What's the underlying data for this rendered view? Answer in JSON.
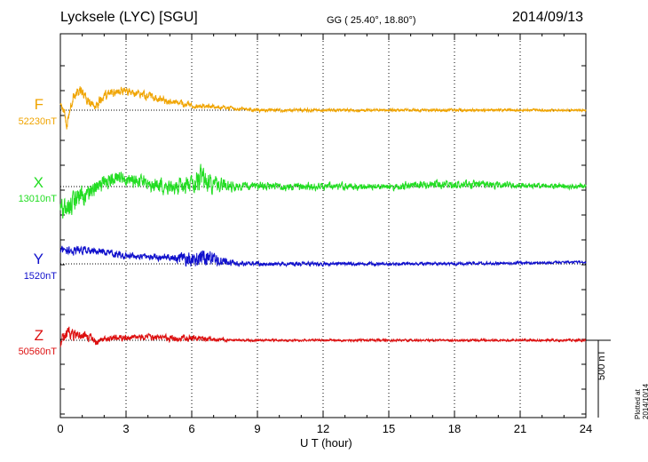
{
  "header": {
    "station": "Lycksele (LYC)  [SGU]",
    "coords": "GG ( 25.40°,  18.80°)",
    "date": "2014/09/13"
  },
  "chart_data": {
    "type": "line",
    "title": "Lycksele (LYC)  [SGU]",
    "xlabel": "U T (hour)",
    "ylabel": "",
    "xlim": [
      0,
      24
    ],
    "xticks": [
      "0",
      "3",
      "6",
      "9",
      "12",
      "15",
      "18",
      "21",
      "24"
    ],
    "grid": "vertical dotted at 3-hour intervals",
    "scale_bar_nT": 500,
    "scale_label": "500 nT",
    "series": [
      {
        "name": "F",
        "baseline": "52230nT",
        "color": "#f0a400",
        "profile": [
          [
            0,
            -10
          ],
          [
            0.3,
            15
          ],
          [
            0.6,
            -15
          ],
          [
            0.9,
            -25
          ],
          [
            1.2,
            -12
          ],
          [
            1.6,
            -5
          ],
          [
            2.0,
            -15
          ],
          [
            2.5,
            -20
          ],
          [
            3.0,
            -22
          ],
          [
            3.5,
            -18
          ],
          [
            4.0,
            -15
          ],
          [
            5.0,
            -10
          ],
          [
            6.0,
            -6
          ],
          [
            7.0,
            -4
          ],
          [
            8.0,
            -2
          ],
          [
            9.0,
            0
          ],
          [
            12.0,
            0
          ],
          [
            24.0,
            0
          ]
        ],
        "noise": [
          [
            0,
            5
          ],
          [
            3,
            4
          ],
          [
            6,
            3
          ],
          [
            8,
            1.5
          ],
          [
            24,
            1
          ]
        ]
      },
      {
        "name": "X",
        "baseline": "13010nT",
        "color": "#22dd22",
        "profile": [
          [
            0,
            30
          ],
          [
            0.5,
            20
          ],
          [
            1.0,
            10
          ],
          [
            1.5,
            5
          ],
          [
            2.0,
            -5
          ],
          [
            2.5,
            -12
          ],
          [
            3.0,
            -8
          ],
          [
            4.0,
            -3
          ],
          [
            5.0,
            0
          ],
          [
            6.0,
            -2
          ],
          [
            7.0,
            -2
          ],
          [
            8.0,
            0
          ],
          [
            12.0,
            0
          ],
          [
            15.0,
            0
          ],
          [
            17.0,
            -3
          ],
          [
            20.0,
            -2
          ],
          [
            24.0,
            0
          ]
        ],
        "noise": [
          [
            0,
            10
          ],
          [
            3,
            6
          ],
          [
            6,
            8
          ],
          [
            6.3,
            16
          ],
          [
            7,
            8
          ],
          [
            8,
            4
          ],
          [
            15,
            3
          ],
          [
            17,
            4
          ],
          [
            24,
            2
          ]
        ]
      },
      {
        "name": "Y",
        "baseline": "1520nT",
        "color": "#1010cc",
        "profile": [
          [
            0,
            -15
          ],
          [
            1.0,
            -15
          ],
          [
            2.0,
            -13
          ],
          [
            3.0,
            -9
          ],
          [
            4.0,
            -8
          ],
          [
            5.0,
            -7
          ],
          [
            6.0,
            -6
          ],
          [
            6.5,
            -8
          ],
          [
            7.0,
            -5
          ],
          [
            7.5,
            -3
          ],
          [
            8.0,
            0
          ],
          [
            9.0,
            0
          ],
          [
            12.0,
            0
          ],
          [
            15.0,
            0
          ],
          [
            18.0,
            0
          ],
          [
            21.0,
            -1
          ],
          [
            24.0,
            -2
          ]
        ],
        "noise": [
          [
            0,
            4
          ],
          [
            3,
            3
          ],
          [
            5,
            3
          ],
          [
            6.3,
            9
          ],
          [
            7.2,
            6
          ],
          [
            8,
            2
          ],
          [
            24,
            1
          ]
        ]
      },
      {
        "name": "Z",
        "baseline": "50560nT",
        "color": "#dd1010",
        "profile": [
          [
            0,
            2
          ],
          [
            0.4,
            -10
          ],
          [
            0.8,
            -5
          ],
          [
            1.2,
            -6
          ],
          [
            1.6,
            2
          ],
          [
            2.0,
            -2
          ],
          [
            3.0,
            -3
          ],
          [
            4.0,
            -4
          ],
          [
            5.0,
            -2
          ],
          [
            6.0,
            -2
          ],
          [
            7.0,
            -1
          ],
          [
            8.0,
            0
          ],
          [
            12.0,
            0
          ],
          [
            24.0,
            0
          ]
        ],
        "noise": [
          [
            0,
            6
          ],
          [
            2,
            3
          ],
          [
            6,
            3
          ],
          [
            7,
            2
          ],
          [
            8,
            1
          ],
          [
            24,
            1
          ]
        ]
      }
    ]
  },
  "footer": {
    "plotted": "Plotted at 2014/10/14 02:12 UT"
  }
}
